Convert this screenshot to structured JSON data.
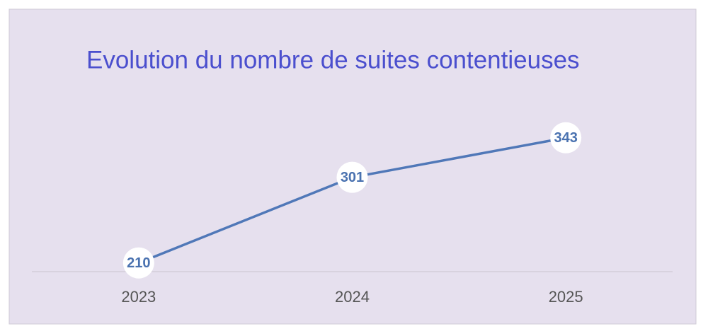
{
  "chart_data": {
    "type": "line",
    "title": "Evolution du nombre de suites contentieuses",
    "categories": [
      "2023",
      "2024",
      "2025"
    ],
    "values": [
      210,
      301,
      343
    ],
    "color": "#5078b8",
    "ylim": [
      200,
      400
    ],
    "grid": false
  }
}
